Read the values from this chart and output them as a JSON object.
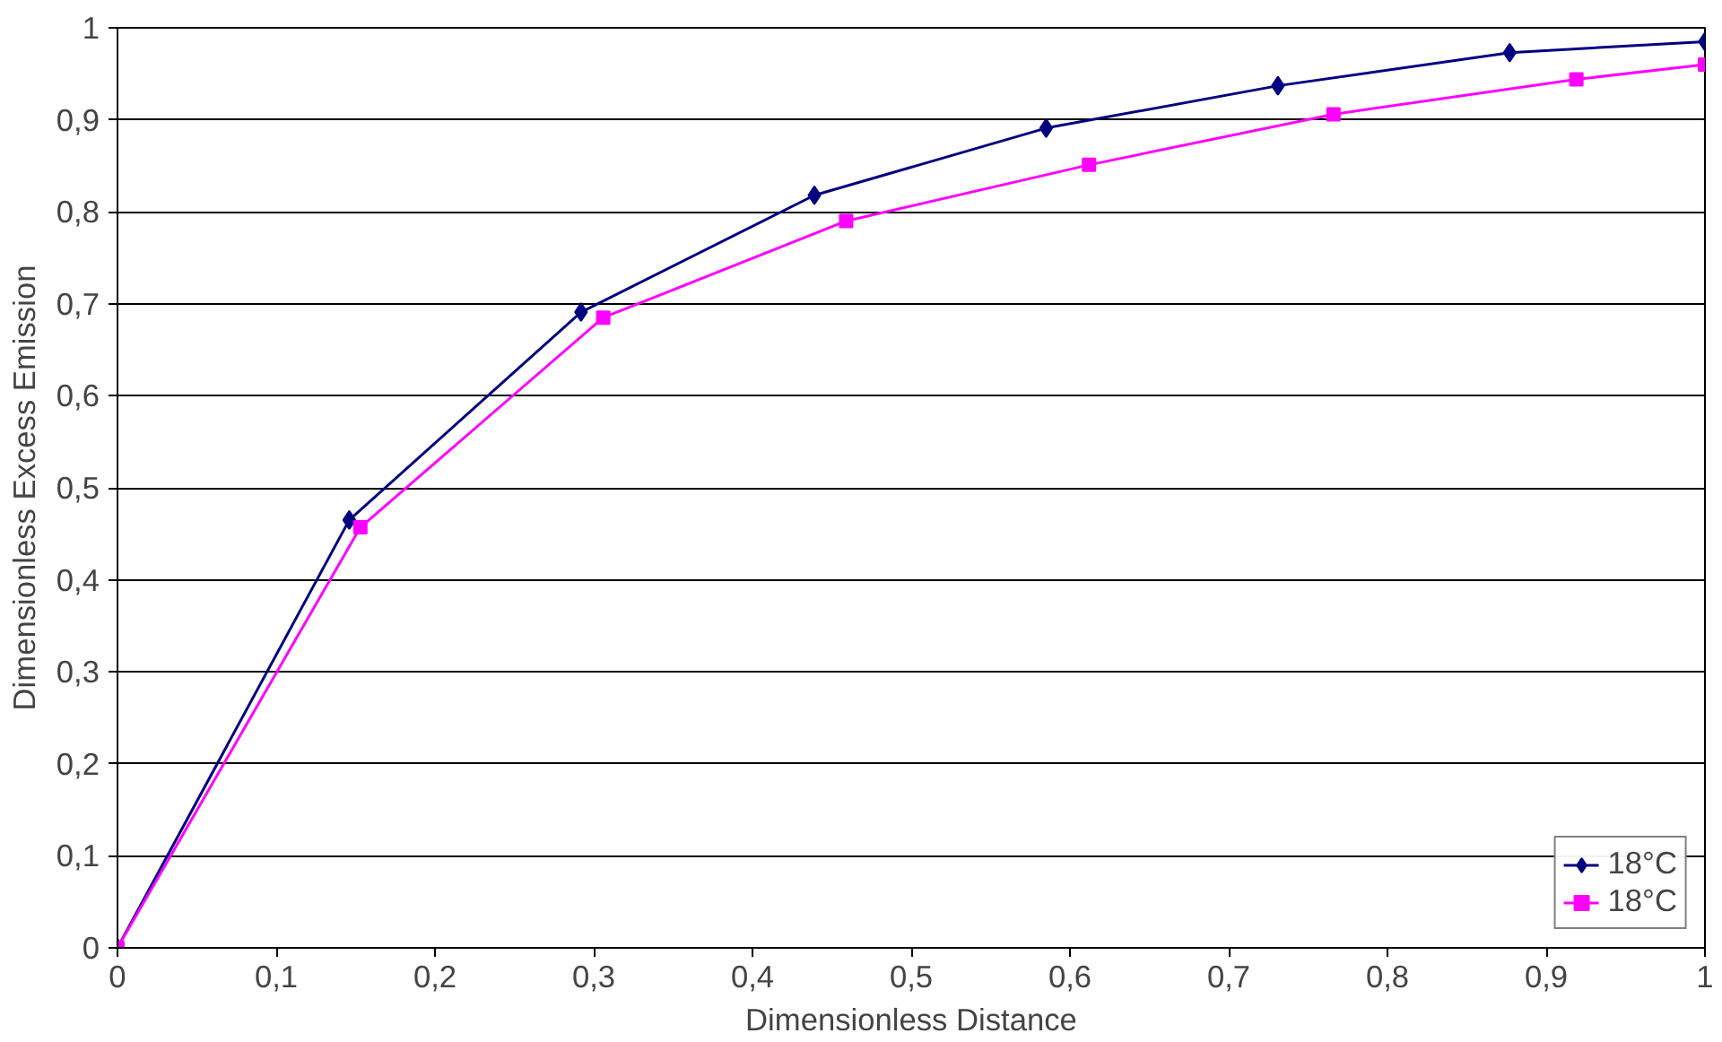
{
  "chart_data": {
    "type": "line",
    "xlabel": "Dimensionless Distance",
    "ylabel": "Dimensionless Excess Emission",
    "xlim": [
      0,
      1
    ],
    "ylim": [
      0,
      1
    ],
    "xticks": [
      0,
      {
        "value": 0.1,
        "label": "0,1"
      },
      {
        "value": 0.2,
        "label": "0,2"
      },
      {
        "value": 0.3,
        "label": "0,3"
      },
      {
        "value": 0.4,
        "label": "0,4"
      },
      {
        "value": 0.5,
        "label": "0,5"
      },
      {
        "value": 0.6,
        "label": "0,6"
      },
      {
        "value": 0.7,
        "label": "0,7"
      },
      {
        "value": 0.8,
        "label": "0,8"
      },
      {
        "value": 0.9,
        "label": "0,9"
      },
      1
    ],
    "yticks": [
      0,
      {
        "value": 0.1,
        "label": "0,1"
      },
      {
        "value": 0.2,
        "label": "0,2"
      },
      {
        "value": 0.3,
        "label": "0,3"
      },
      {
        "value": 0.4,
        "label": "0,4"
      },
      {
        "value": 0.5,
        "label": "0,5"
      },
      {
        "value": 0.6,
        "label": "0,6"
      },
      {
        "value": 0.7,
        "label": "0,7"
      },
      {
        "value": 0.8,
        "label": "0,8"
      },
      {
        "value": 0.9,
        "label": "0,9"
      },
      1
    ],
    "grid": "y",
    "legend": "bottom right",
    "series": [
      {
        "name": "18°C",
        "color": "#000080",
        "marker": "diamond",
        "x": [
          0,
          0.146,
          0.292,
          0.439,
          0.585,
          0.731,
          0.877,
          1.0
        ],
        "values": [
          0,
          0.465,
          0.691,
          0.818,
          0.891,
          0.937,
          0.973,
          0.985
        ]
      },
      {
        "name": "18°C",
        "color": "#ff00ff",
        "marker": "square",
        "x": [
          0,
          0.153,
          0.306,
          0.459,
          0.612,
          0.766,
          0.919,
          1.0
        ],
        "values": [
          0,
          0.457,
          0.685,
          0.79,
          0.851,
          0.906,
          0.944,
          0.96
        ]
      }
    ]
  }
}
